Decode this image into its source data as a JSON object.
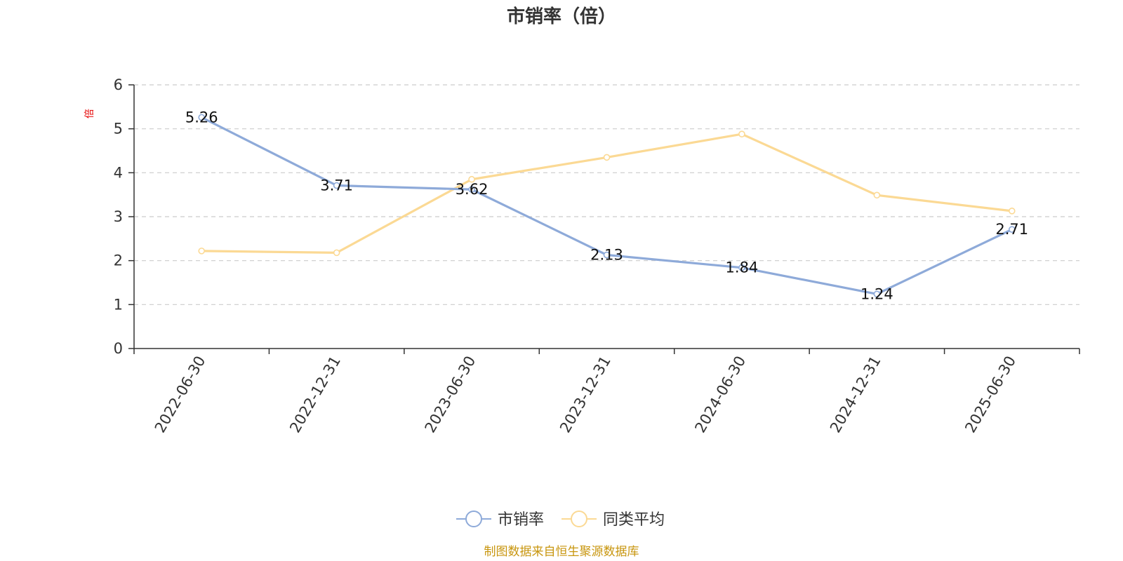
{
  "title": "市销率（倍）",
  "source_note": "制图数据来自恒生聚源数据库",
  "chart_data": {
    "type": "line",
    "title": "市销率（倍）",
    "ylabel": "倍",
    "xlabel": "",
    "categories": [
      "2022-06-30",
      "2022-12-31",
      "2023-06-30",
      "2023-12-31",
      "2024-06-30",
      "2024-12-31",
      "2025-06-30"
    ],
    "ylim": [
      0,
      6
    ],
    "yticks": [
      0,
      1,
      2,
      3,
      4,
      5,
      6
    ],
    "grid": true,
    "legend_position": "bottom",
    "series": [
      {
        "name": "市销率",
        "color": "#8eaad9",
        "values": [
          5.26,
          3.71,
          3.62,
          2.13,
          1.84,
          1.24,
          2.71
        ],
        "labels": [
          "5.26",
          "3.71",
          "3.62",
          "2.13",
          "1.84",
          "1.24",
          "2.71"
        ],
        "show_labels": true
      },
      {
        "name": "同类平均",
        "color": "#fbd994",
        "values": [
          2.22,
          2.18,
          3.85,
          4.35,
          4.88,
          3.49,
          3.13
        ],
        "show_labels": false
      }
    ]
  }
}
